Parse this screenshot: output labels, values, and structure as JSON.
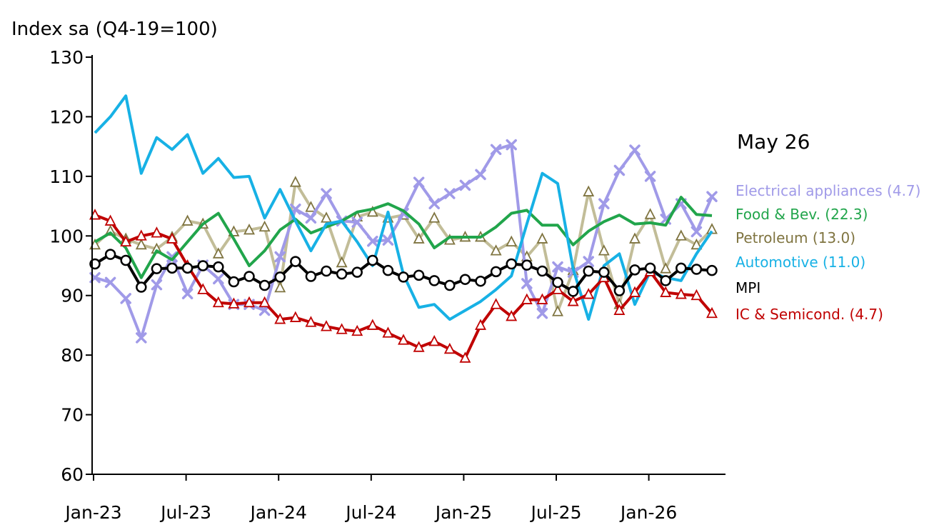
{
  "chart_data": {
    "type": "line",
    "ylabel": "Index sa (Q4-19=100)",
    "annotation": "May 26",
    "ylim": [
      60,
      130
    ],
    "yticks": [
      60,
      70,
      80,
      90,
      100,
      110,
      120,
      130
    ],
    "x_tick_labels": [
      "Jan-23",
      "Jul-23",
      "Jan-24",
      "Jul-24",
      "Jan-25",
      "Jul-25",
      "Jan-26"
    ],
    "x": [
      "Jan-23",
      "Feb-23",
      "Mar-23",
      "Apr-23",
      "May-23",
      "Jun-23",
      "Jul-23",
      "Aug-23",
      "Sep-23",
      "Oct-23",
      "Nov-23",
      "Dec-23",
      "Jan-24",
      "Feb-24",
      "Mar-24",
      "Apr-24",
      "May-24",
      "Jun-24",
      "Jul-24",
      "Aug-24",
      "Sep-24",
      "Oct-24",
      "Nov-24",
      "Dec-24",
      "Jan-25",
      "Feb-25",
      "Mar-25",
      "Apr-25",
      "May-25",
      "Jun-25",
      "Jul-25",
      "Aug-25",
      "Sep-25",
      "Oct-25",
      "Nov-25",
      "Dec-25",
      "Jan-26",
      "Feb-26",
      "Mar-26",
      "Apr-26",
      "May-26"
    ],
    "series": [
      {
        "name": "Electrical appliances (4.7)",
        "color": "#a09ae8",
        "marker": "x",
        "values": [
          93.0,
          92.2,
          89.5,
          82.9,
          91.8,
          96.5,
          90.3,
          95.1,
          92.8,
          88.5,
          88.5,
          87.5,
          96.5,
          104.5,
          103.0,
          107.1,
          102.5,
          102.3,
          99.1,
          99.3,
          103.8,
          109.0,
          105.4,
          107.1,
          108.5,
          110.3,
          114.5,
          115.3,
          92.0,
          87.0,
          94.8,
          93.9,
          95.7,
          105.4,
          111.0,
          114.4,
          110.0,
          102.8,
          105.4,
          100.7,
          106.6
        ]
      },
      {
        "name": "Food & Bev. (22.3)",
        "color": "#21a54b",
        "marker": "none",
        "values": [
          99.0,
          100.5,
          98.0,
          93.0,
          97.5,
          96.0,
          99.0,
          102.0,
          103.8,
          99.5,
          95.0,
          97.5,
          101.0,
          102.8,
          100.5,
          101.5,
          102.5,
          104.0,
          104.5,
          105.4,
          104.2,
          102.0,
          98.0,
          99.8,
          99.8,
          99.8,
          101.5,
          103.8,
          104.3,
          101.8,
          101.8,
          98.5,
          100.8,
          102.4,
          103.5,
          102.0,
          102.2,
          101.8,
          106.5,
          103.6,
          103.4
        ]
      },
      {
        "name": "Petroleum (13.0)",
        "color": "#c2bd98",
        "marker": "triangle",
        "markerColor": "#7f7440",
        "values": [
          98.5,
          100.8,
          99.5,
          98.5,
          97.8,
          99.8,
          102.5,
          102.0,
          97.0,
          100.7,
          101.0,
          101.5,
          91.3,
          109.0,
          104.8,
          103.0,
          95.5,
          103.2,
          104.0,
          103.0,
          103.5,
          99.5,
          103.0,
          99.3,
          99.8,
          99.8,
          97.5,
          99.0,
          96.5,
          99.5,
          87.3,
          94.2,
          107.4,
          97.5,
          88.5,
          99.5,
          103.6,
          94.5,
          100.0,
          98.5,
          101.1
        ]
      },
      {
        "name": "Automotive (11.0)",
        "color": "#17b1e5",
        "marker": "none",
        "values": [
          117.3,
          120.0,
          123.5,
          110.5,
          116.5,
          114.5,
          117.0,
          110.5,
          113.0,
          109.8,
          110.0,
          103.0,
          107.8,
          102.5,
          97.5,
          102.0,
          102.5,
          99.0,
          95.0,
          104.0,
          93.5,
          88.0,
          88.5,
          86.0,
          87.5,
          89.0,
          91.0,
          93.3,
          102.0,
          110.5,
          108.8,
          94.5,
          86.0,
          95.0,
          97.0,
          88.5,
          94.0,
          93.0,
          92.5,
          97.0,
          100.8
        ]
      },
      {
        "name": "MPI",
        "color": "#000000",
        "marker": "circle",
        "values": [
          95.3,
          96.9,
          95.9,
          91.4,
          94.5,
          94.6,
          94.6,
          95.0,
          94.8,
          92.3,
          93.2,
          91.7,
          93.1,
          95.7,
          93.2,
          94.1,
          93.6,
          93.9,
          95.9,
          94.2,
          93.1,
          93.4,
          92.5,
          91.7,
          92.7,
          92.4,
          94.0,
          95.3,
          95.1,
          94.1,
          92.2,
          90.7,
          94.1,
          93.9,
          90.8,
          94.3,
          94.6,
          92.5,
          94.6,
          94.4,
          94.2
        ]
      },
      {
        "name": "IC & Semicond. (4.7)",
        "color": "#c00000",
        "marker": "triangle",
        "values": [
          103.5,
          102.5,
          99.0,
          100.0,
          100.5,
          99.5,
          95.0,
          91.0,
          88.8,
          88.6,
          88.8,
          88.8,
          86.0,
          86.3,
          85.5,
          84.8,
          84.3,
          84.0,
          85.0,
          83.7,
          82.5,
          81.3,
          82.3,
          81.0,
          79.5,
          85.0,
          88.5,
          86.5,
          89.3,
          89.3,
          91.0,
          89.0,
          90.2,
          93.0,
          87.5,
          90.5,
          94.0,
          90.5,
          90.2,
          90.0,
          87.0
        ]
      }
    ],
    "grid": false,
    "legend": "right"
  }
}
